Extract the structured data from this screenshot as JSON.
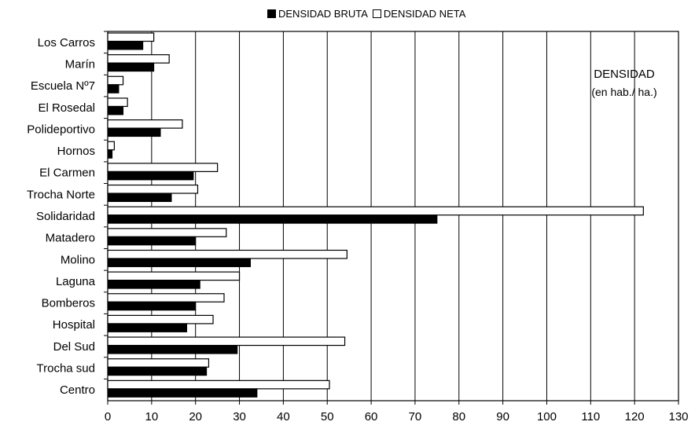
{
  "chart_data": {
    "type": "bar",
    "orientation": "horizontal",
    "categories": [
      "Los Carros",
      "Marín",
      "Escuela Nº7",
      "El Rosedal",
      "Polideportivo",
      "Hornos",
      "El Carmen",
      "Trocha Norte",
      "Solidaridad",
      "Matadero",
      "Molino",
      "Laguna",
      "Bomberos",
      "Hospital",
      "Del Sud",
      "Trocha sud",
      "Centro"
    ],
    "series": [
      {
        "name": "DENSIDAD BRUTA",
        "color": "#000000",
        "values": [
          8,
          10.5,
          2.5,
          3.5,
          12,
          1,
          19.5,
          14.5,
          75,
          20,
          32.5,
          21,
          20,
          18,
          29.5,
          22.5,
          34
        ]
      },
      {
        "name": "DENSIDAD NETA",
        "color": "#ffffff",
        "values": [
          10.5,
          14,
          3.5,
          4.5,
          17,
          1.5,
          25,
          20.5,
          122,
          27,
          54.5,
          30,
          26.5,
          24,
          54,
          23,
          50.5
        ]
      }
    ],
    "xlim": [
      0,
      130
    ],
    "xticks": [
      0,
      10,
      20,
      30,
      40,
      50,
      60,
      70,
      80,
      90,
      100,
      110,
      120,
      130
    ],
    "grid": "vertical",
    "legend_position": "top",
    "annotation": {
      "line1": "DENSIDAD",
      "line2": "(en hab./ ha.)"
    },
    "title": "",
    "xlabel": "",
    "ylabel": ""
  }
}
